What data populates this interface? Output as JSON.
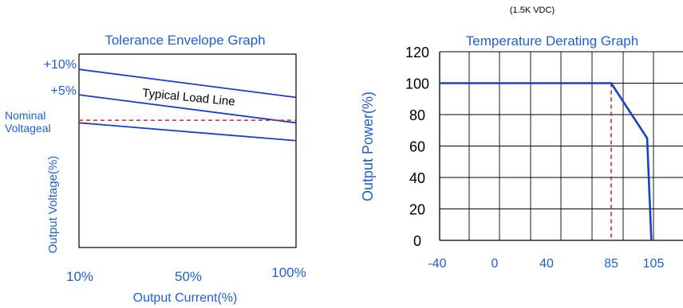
{
  "header_note": "(1.5K VDC)",
  "colors": {
    "text_blue": "#1f5fd6",
    "line_blue": "#1a3fc8",
    "red_dash": "#e02020",
    "grid": "#000000"
  },
  "chart_data": [
    {
      "type": "line",
      "title": "Tolerance Envelope Graph",
      "xlabel": "Output Current(%)",
      "ylabel": "Output Voltage(%)",
      "x_tick_labels": [
        "10%",
        "50%",
        "100%"
      ],
      "level_labels": [
        "+10%",
        "+5%",
        "Nominal",
        "Voltageal"
      ],
      "annotation": "Typical Load Line",
      "x": [
        10,
        100
      ],
      "series": [
        {
          "values": [
            10.0,
            4.5
          ]
        },
        {
          "values": [
            5.0,
            -0.5
          ]
        },
        {
          "values": [
            -0.5,
            -4.0
          ]
        }
      ],
      "nominal_dashed": 0,
      "ylim": [
        -25,
        13
      ],
      "xlim": [
        10,
        100
      ]
    },
    {
      "type": "line",
      "title": "Temperature Derating Graph",
      "xlabel": "",
      "ylabel": "Output Power(%)",
      "x_ticks": [
        -40,
        0,
        40,
        85,
        105
      ],
      "y_ticks": [
        0,
        20,
        40,
        60,
        80,
        100,
        120
      ],
      "x_tick_labels": [
        "-40",
        "0",
        "40",
        "85",
        "105"
      ],
      "y_tick_labels": [
        "0",
        "20",
        "40",
        "60",
        "80",
        "100",
        "120"
      ],
      "x": [
        -45,
        85,
        102,
        104
      ],
      "series": [
        {
          "values": [
            100,
            100,
            65,
            0
          ]
        }
      ],
      "dashed_vertical_at": 85,
      "grid": true
    }
  ]
}
